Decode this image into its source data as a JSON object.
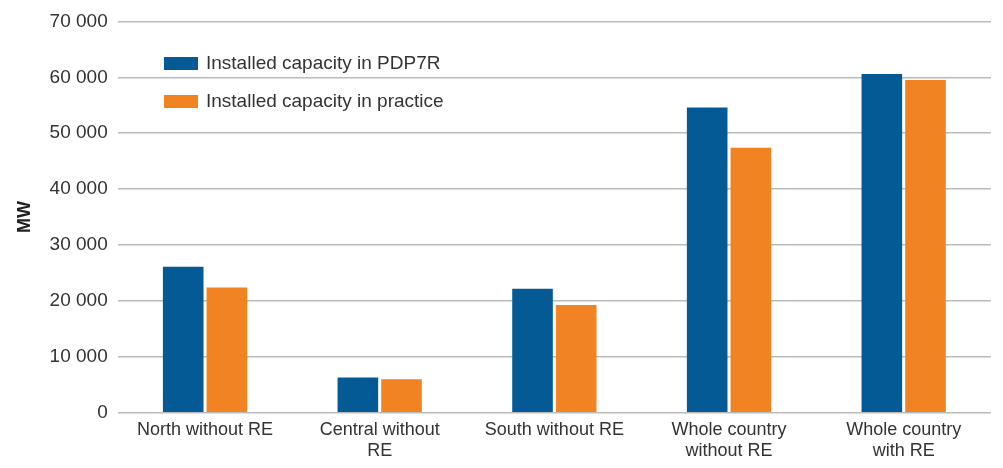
{
  "chart_data": {
    "type": "bar",
    "ylabel": "MW",
    "categories": [
      "North without RE",
      "Central without RE",
      "South without RE",
      "Whole country without RE",
      "Whole country with RE"
    ],
    "series": [
      {
        "name": "Installed capacity in PDP7R",
        "color": "#035a94",
        "values": [
          26100,
          6300,
          22200,
          54600,
          60600
        ]
      },
      {
        "name": "Installed capacity in practice",
        "color": "#f28322",
        "values": [
          22400,
          6000,
          19300,
          47400,
          59500
        ]
      }
    ],
    "ylim": [
      0,
      70000
    ],
    "yticks": [
      {
        "value": 0,
        "label": "0"
      },
      {
        "value": 10000,
        "label": "10 000"
      },
      {
        "value": 20000,
        "label": "20 000"
      },
      {
        "value": 30000,
        "label": "30 000"
      },
      {
        "value": 40000,
        "label": "40 000"
      },
      {
        "value": 50000,
        "label": "50 000"
      },
      {
        "value": 60000,
        "label": "60 000"
      },
      {
        "value": 70000,
        "label": "70 000"
      }
    ],
    "grid": "y",
    "legend": "top left"
  }
}
